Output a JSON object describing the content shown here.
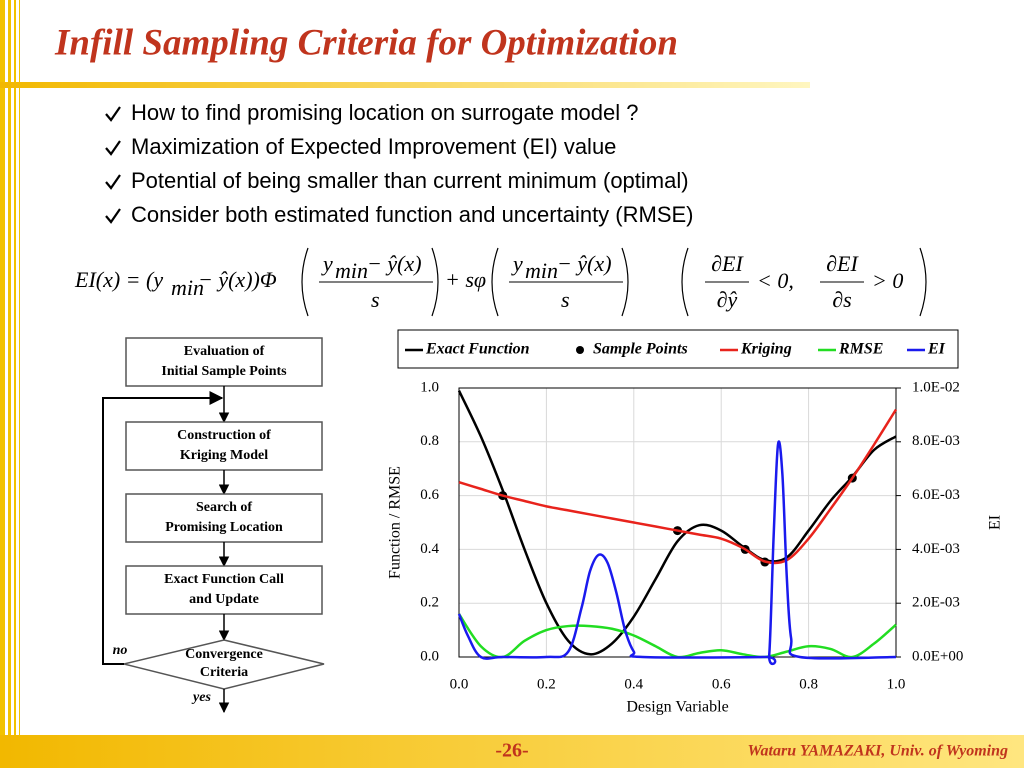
{
  "title": "Infill Sampling Criteria for Optimization",
  "bullets": [
    "How to find promising location on surrogate model ?",
    "Maximization of Expected Improvement (EI) value",
    "Potential of being smaller than current minimum (optimal)",
    "Consider both estimated function and uncertainty (RMSE)"
  ],
  "equations": {
    "ei": {
      "lhs": "EI(x) = (y",
      "lhs_sub": "min",
      "mid": "− ŷ(x))Φ",
      "num": "y",
      "num_sub": "min",
      "num_rest": "− ŷ(x)",
      "den": "s",
      "plus": "+ sφ"
    },
    "conditions": [
      {
        "num": "∂EI",
        "den": "∂ŷ",
        "rel": "< 0,"
      },
      {
        "num": "∂EI",
        "den": "∂s",
        "rel": "> 0"
      }
    ]
  },
  "flowchart": {
    "steps": [
      [
        "Evaluation of",
        "Initial Sample Points"
      ],
      [
        "Construction of",
        "Kriging Model"
      ],
      [
        "Search of",
        "Promising Location"
      ],
      [
        "Exact Function Call",
        "and Update"
      ]
    ],
    "decision": [
      "Convergence",
      "Criteria"
    ],
    "no": "no",
    "yes": "yes"
  },
  "footer": {
    "page": "-26-",
    "author": "Wataru YAMAZAKI, Univ. of Wyoming"
  },
  "chart_data": {
    "type": "line",
    "xlabel": "Design Variable",
    "ylabel": "Function / RMSE",
    "y2label": "EI",
    "x": [
      0,
      0.05,
      0.1,
      0.15,
      0.2,
      0.25,
      0.3,
      0.35,
      0.4,
      0.45,
      0.5,
      0.55,
      0.6,
      0.65,
      0.7,
      0.75,
      0.8,
      0.85,
      0.9,
      0.95,
      1.0
    ],
    "series": [
      {
        "name": "Exact Function",
        "color": "#000000",
        "mode": "lines",
        "values": [
          0.99,
          0.82,
          0.62,
          0.4,
          0.2,
          0.06,
          0.01,
          0.05,
          0.15,
          0.29,
          0.43,
          0.49,
          0.47,
          0.41,
          0.36,
          0.37,
          0.47,
          0.58,
          0.67,
          0.77,
          0.82
        ]
      },
      {
        "name": "Sample Points",
        "color": "#000000",
        "mode": "markers",
        "x": [
          0.1,
          0.5,
          0.655,
          0.7,
          0.9
        ],
        "values": [
          0.6,
          0.47,
          0.4,
          0.353,
          0.665
        ]
      },
      {
        "name": "Kriging",
        "color": "#e8231c",
        "mode": "lines",
        "values": [
          0.65,
          0.625,
          0.6,
          0.58,
          0.56,
          0.545,
          0.53,
          0.515,
          0.5,
          0.485,
          0.47,
          0.455,
          0.44,
          0.405,
          0.355,
          0.36,
          0.44,
          0.55,
          0.665,
          0.79,
          0.92
        ]
      },
      {
        "name": "RMSE",
        "color": "#22dd22",
        "mode": "lines",
        "values": [
          0.16,
          0.04,
          0.0,
          0.06,
          0.1,
          0.115,
          0.115,
          0.105,
          0.08,
          0.04,
          0.0,
          0.015,
          0.025,
          0.01,
          0.0,
          0.02,
          0.04,
          0.03,
          0.0,
          0.05,
          0.12
        ]
      },
      {
        "name": "EI",
        "color": "#1a1aee",
        "mode": "lines",
        "axis": "y2",
        "x": [
          0,
          0.02,
          0.05,
          0.1,
          0.2,
          0.25,
          0.28,
          0.3,
          0.32,
          0.34,
          0.36,
          0.38,
          0.4,
          0.42,
          0.7,
          0.71,
          0.72,
          0.73,
          0.74,
          0.75,
          0.76,
          0.78,
          1.0
        ],
        "values": [
          0.0016,
          0.0008,
          0,
          0,
          0,
          0.0002,
          0.0018,
          0.0032,
          0.0038,
          0.0035,
          0.0024,
          0.001,
          0.0002,
          0,
          0,
          0.0001,
          0.0045,
          0.0079,
          0.0068,
          0.003,
          0.0007,
          0,
          0
        ]
      }
    ],
    "xlim": [
      0,
      1
    ],
    "xticks": [
      {
        "value": 0,
        "label": "0.0"
      },
      {
        "value": 0.2,
        "label": "0.2"
      },
      {
        "value": 0.4,
        "label": "0.4"
      },
      {
        "value": 0.6,
        "label": "0.6"
      },
      {
        "value": 0.8,
        "label": "0.8"
      },
      {
        "value": 1,
        "label": "1.0"
      }
    ],
    "ylim": [
      0,
      1
    ],
    "yticks": [
      {
        "value": 0,
        "label": "0.0"
      },
      {
        "value": 0.2,
        "label": "0.2"
      },
      {
        "value": 0.4,
        "label": "0.4"
      },
      {
        "value": 0.6,
        "label": "0.6"
      },
      {
        "value": 0.8,
        "label": "0.8"
      },
      {
        "value": 1,
        "label": "1.0"
      }
    ],
    "y2lim": [
      0,
      0.01
    ],
    "y2ticks": [
      {
        "value": 0,
        "label": "0.0E+00"
      },
      {
        "value": 0.002,
        "label": "2.0E-03"
      },
      {
        "value": 0.004,
        "label": "4.0E-03"
      },
      {
        "value": 0.006,
        "label": "6.0E-03"
      },
      {
        "value": 0.008,
        "label": "8.0E-03"
      },
      {
        "value": 0.01,
        "label": "1.0E-02"
      }
    ],
    "grid": true
  }
}
